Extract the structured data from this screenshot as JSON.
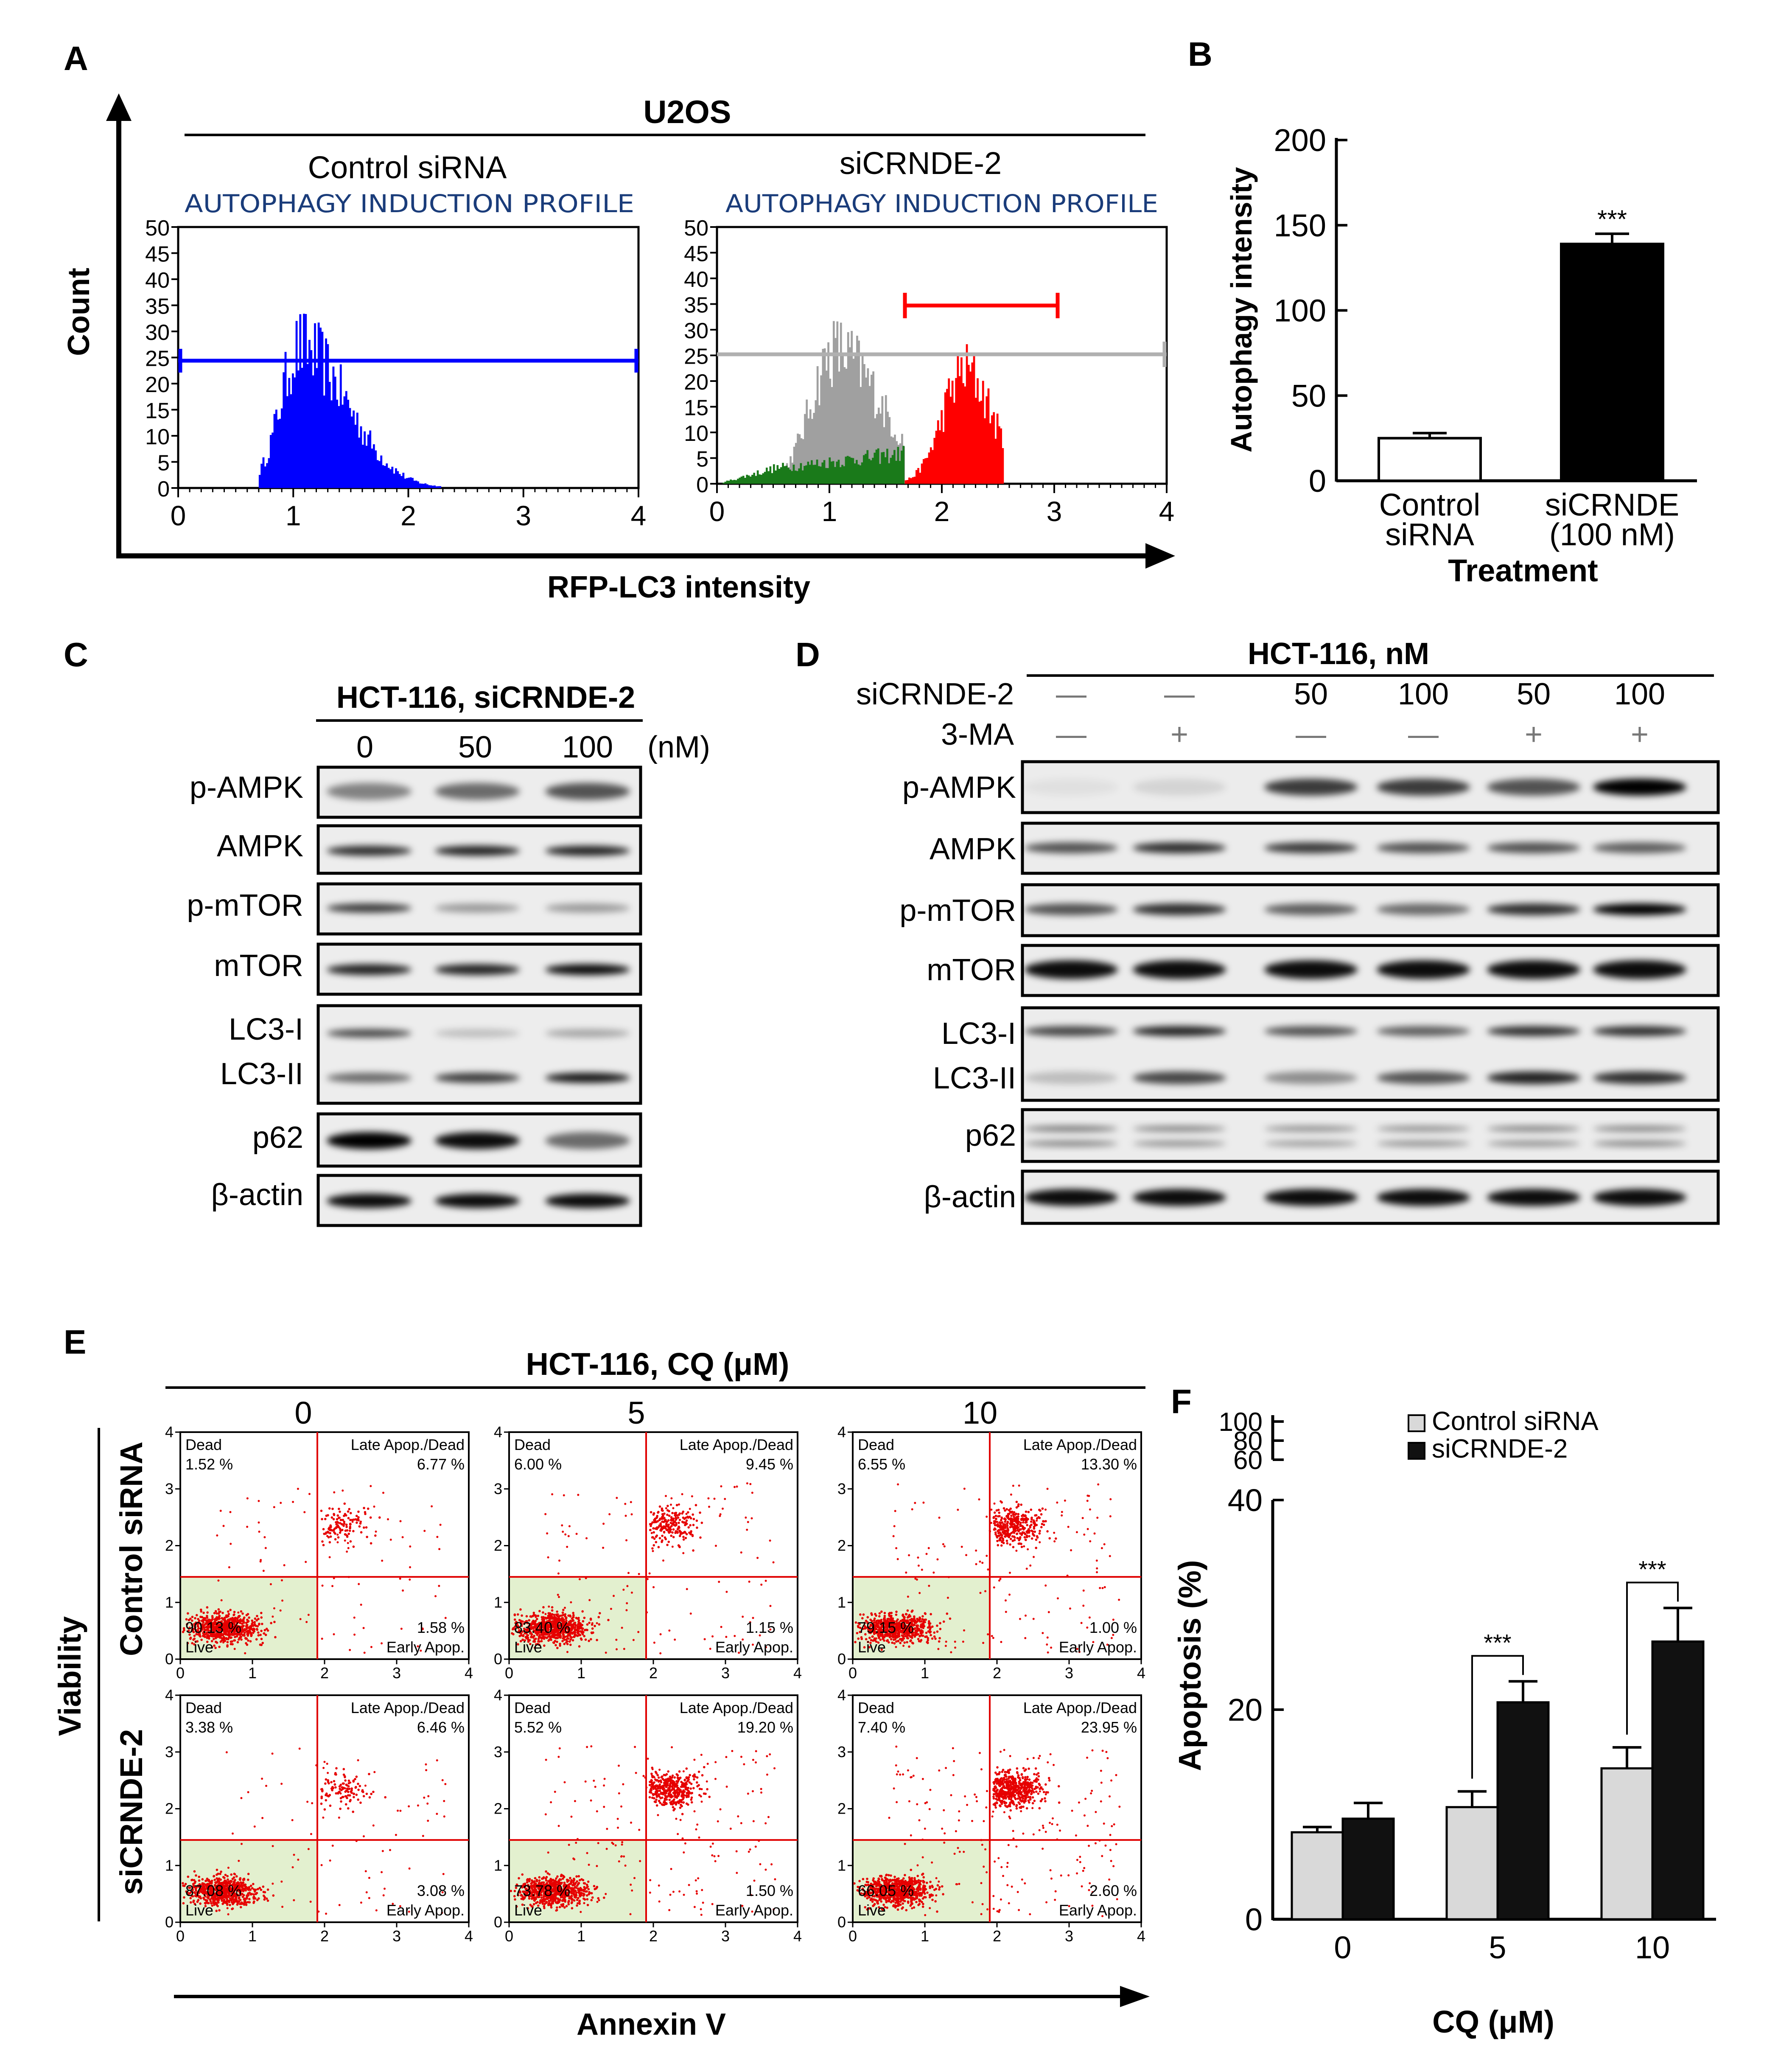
{
  "panel_letters": [
    "A",
    "B",
    "C",
    "D",
    "E",
    "F"
  ],
  "panelA": {
    "cell_line": "U2OS",
    "y_axis_label": "Count",
    "x_axis_label": "RFP-LC3 intensity",
    "subtitle": "AUTOPHAGY INDUCTION PROFILE",
    "plots": [
      {
        "title": "Control siRNA",
        "subtitle": "AUTOPHAGY INDUCTION PROFILE"
      },
      {
        "title": "siCRNDE-2",
        "subtitle": "AUTOPHAGY INDUCTION PROFILE"
      }
    ],
    "y_ticks": [
      0,
      5,
      10,
      15,
      20,
      25,
      30,
      35,
      40,
      45,
      50
    ],
    "x_ticks": [
      0,
      1,
      2,
      3,
      4
    ],
    "colors": {
      "control": "#0000ff",
      "gray": "#a0a0a0",
      "green": "#1a7a1a",
      "red": "#ff0000"
    }
  },
  "chart_data": [
    {
      "id": "B",
      "type": "bar",
      "ylabel": "Autophagy intensity",
      "xlabel": "Treatment",
      "ylim": [
        0,
        200
      ],
      "y_ticks": [
        0,
        50,
        100,
        150,
        200
      ],
      "categories": [
        [
          "Control",
          "siRNA"
        ],
        [
          "siCRNDE",
          "(100 nM)"
        ]
      ],
      "values": [
        25,
        139
      ],
      "errors": [
        3,
        6
      ],
      "significance": [
        "",
        "***"
      ],
      "fills": [
        "#ffffff",
        "#000000"
      ]
    },
    {
      "id": "F",
      "type": "bar",
      "ylabel": "Apoptosis (%)",
      "xlabel": "CQ (μM)",
      "ylim": [
        0,
        40
      ],
      "y_ticks": [
        0,
        20,
        40
      ],
      "y_break_ticks": [
        60,
        80,
        100
      ],
      "categories": [
        "0",
        "5",
        "10"
      ],
      "series": [
        {
          "name": "Control siRNA",
          "values": [
            8.3,
            10.7,
            14.4
          ],
          "errors": [
            0.5,
            1.5,
            2.0
          ],
          "color": "#d9d9d9"
        },
        {
          "name": "siCRNDE-2",
          "values": [
            9.6,
            20.7,
            26.5
          ],
          "errors": [
            1.5,
            2.0,
            3.2
          ],
          "color": "#111111"
        }
      ],
      "significance": [
        {
          "category": "5",
          "label": "***"
        },
        {
          "category": "10",
          "label": "***"
        }
      ]
    },
    {
      "id": "E",
      "type": "scatter",
      "title": "HCT-116, CQ (μM)",
      "xlabel": "Annexin V",
      "ylabel": "Viability",
      "x_ticks": [
        0,
        1,
        2,
        3,
        4
      ],
      "y_ticks": [
        0,
        1,
        2,
        3,
        4
      ],
      "columns": [
        "0",
        "5",
        "10"
      ],
      "rows": [
        "Control siRNA",
        "siCRNDE-2"
      ],
      "quadrant_labels": {
        "dead": "Dead",
        "late": "Late Apop./Dead",
        "live": "Live",
        "early": "Early Apop."
      },
      "plots": [
        {
          "dead": "1.52 %",
          "late": "6.77 %",
          "live": "90.13 %",
          "early": "1.58 %"
        },
        {
          "dead": "6.00 %",
          "late": "9.45 %",
          "live": "83.40 %",
          "early": "1.15 %"
        },
        {
          "dead": "6.55 %",
          "late": "13.30 %",
          "live": "79.15 %",
          "early": "1.00 %"
        },
        {
          "dead": "3.38 %",
          "late": "6.46 %",
          "live": "87.08 %",
          "early": "3.08 %"
        },
        {
          "dead": "5.52 %",
          "late": "19.20 %",
          "live": "73.78 %",
          "early": "1.50 %"
        },
        {
          "dead": "7.40 %",
          "late": "23.95 %",
          "live": "66.05 %",
          "early": "2.60 %"
        }
      ]
    }
  ],
  "panelC": {
    "title": "HCT-116, siCRNDE-2",
    "doses": [
      "0",
      "50",
      "100"
    ],
    "unit": "(nM)",
    "rows": [
      "p-AMPK",
      "AMPK",
      "p-mTOR",
      "mTOR",
      "LC3-I",
      "LC3-II",
      "p62",
      "β-actin"
    ]
  },
  "panelD": {
    "title": "HCT-116, nM",
    "row1_label": "siCRNDE-2",
    "row2_label": "3-MA",
    "sicrnde": [
      "—",
      "—",
      "50",
      "100",
      "50",
      "100"
    ],
    "ma3": [
      "—",
      "+",
      "—",
      "—",
      "+",
      "+"
    ],
    "rows": [
      "p-AMPK",
      "AMPK",
      "p-mTOR",
      "mTOR",
      "LC3-I",
      "LC3-II",
      "p62",
      "β-actin"
    ]
  }
}
